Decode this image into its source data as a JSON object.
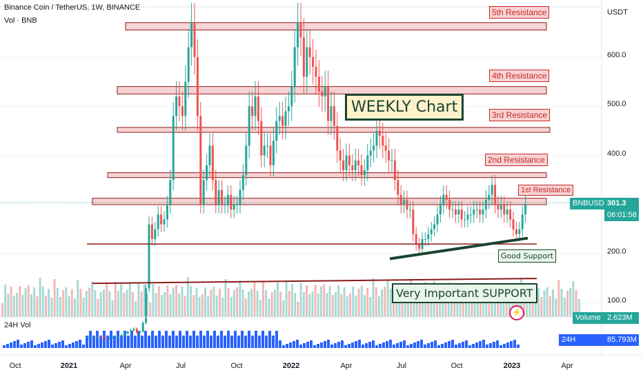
{
  "header": {
    "symbol_line": "Binance Coin / TetherUS, 1W, BINANCE",
    "vol_line": "Vol · BNB"
  },
  "price_axis": {
    "unit": "USDT",
    "ticks": [
      "600.0",
      "500.0",
      "400.0",
      "300.0",
      "200.0",
      "100.0"
    ]
  },
  "time_axis": {
    "ticks": [
      {
        "label": "Oct",
        "bold": false
      },
      {
        "label": "2021",
        "bold": true
      },
      {
        "label": "Apr",
        "bold": false
      },
      {
        "label": "Jul",
        "bold": false
      },
      {
        "label": "Oct",
        "bold": false
      },
      {
        "label": "2022",
        "bold": true
      },
      {
        "label": "Apr",
        "bold": false
      },
      {
        "label": "Jul",
        "bold": false
      },
      {
        "label": "Oct",
        "bold": false
      },
      {
        "label": "2023",
        "bold": true
      },
      {
        "label": "Apr",
        "bold": false
      }
    ]
  },
  "price_tag": {
    "symbol": "BNBUSDT",
    "price": "301.3",
    "countdown": "06:01:58"
  },
  "volume_tag": {
    "label": "Volume",
    "value": "2.623M"
  },
  "h24_volume_tag": {
    "label": "24H Volume",
    "value": "85.793M"
  },
  "h24_legend": "24H Vol",
  "annotations": {
    "resistances": [
      "5th Resistance",
      "4th Resistance",
      "3rd Resistance",
      "2nd Resistance",
      "1st Resistance"
    ],
    "weekly": "WEEKLY Chart",
    "good_support": "Good Support",
    "important_support": "Very Important SUPPORT"
  },
  "colors": {
    "up": "#26a69a",
    "down": "#ef5350",
    "resistance": "#8b1a1a",
    "zone_fill": "#f8d3d3",
    "h24_bar": "#2962ff"
  },
  "chart_data": {
    "type": "candlestick",
    "interval": "1W",
    "ylim": [
      60,
      690
    ],
    "closes": [
      30,
      31,
      31,
      32,
      30,
      28,
      27,
      29,
      30,
      31,
      33,
      35,
      38,
      42,
      45,
      48,
      40,
      42,
      60,
      130,
      260,
      230,
      250,
      280,
      260,
      270,
      300,
      350,
      480,
      520,
      500,
      480,
      550,
      620,
      670,
      600,
      480,
      300,
      350,
      380,
      420,
      350,
      300,
      330,
      300,
      300,
      320,
      290,
      300,
      300,
      330,
      360,
      420,
      500,
      480,
      520,
      470,
      400,
      420,
      420,
      380,
      430,
      470,
      480,
      460,
      490,
      500,
      540,
      620,
      670,
      640,
      560,
      620,
      600,
      580,
      560,
      530,
      520,
      540,
      470,
      500,
      460,
      410,
      390,
      370,
      400,
      380,
      370,
      390,
      380,
      360,
      370,
      400,
      410,
      420,
      450,
      440,
      420,
      410,
      390,
      390,
      350,
      320,
      300,
      310,
      290,
      290,
      240,
      220,
      210,
      230,
      230,
      240,
      250,
      260,
      280,
      300,
      320,
      310,
      290,
      290,
      280,
      290,
      270,
      270,
      280,
      280,
      290,
      290,
      280,
      290,
      310,
      320,
      340,
      300,
      290,
      300,
      280,
      290,
      270,
      250,
      240,
      250,
      280,
      301.3
    ]
  }
}
